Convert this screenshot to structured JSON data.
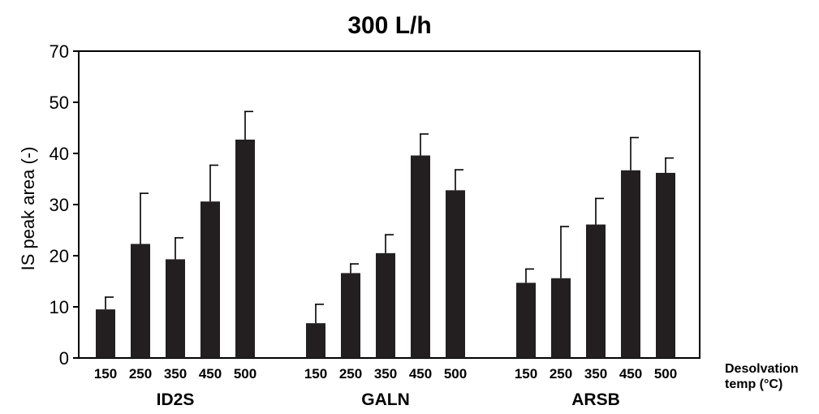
{
  "chart_data": {
    "type": "bar",
    "title": "300 L/h",
    "ylabel": "IS peak area (-)",
    "xlabel_line1": "Desolvation",
    "xlabel_line2": "temp (°C)",
    "ylim": [
      0,
      60
    ],
    "yticks": [
      0,
      10,
      20,
      30,
      40,
      50,
      70
    ],
    "yticks_note": "tick labels as printed: top label reads 70",
    "categories": [
      "150",
      "250",
      "350",
      "450",
      "500"
    ],
    "groups": [
      {
        "name": "ID2S",
        "values": [
          9.5,
          22.3,
          19.3,
          30.6,
          42.7
        ],
        "errors": [
          2.4,
          9.9,
          4.2,
          7.1,
          5.5
        ]
      },
      {
        "name": "GALN",
        "values": [
          6.8,
          16.6,
          20.5,
          39.6,
          32.8
        ],
        "errors": [
          3.7,
          1.8,
          3.6,
          4.2,
          4.0
        ]
      },
      {
        "name": "ARSB",
        "values": [
          14.7,
          15.6,
          26.1,
          36.7,
          36.2
        ],
        "errors": [
          2.7,
          10.1,
          5.1,
          6.4,
          2.9
        ]
      }
    ],
    "grid": false,
    "bar_color": "#231f20"
  }
}
